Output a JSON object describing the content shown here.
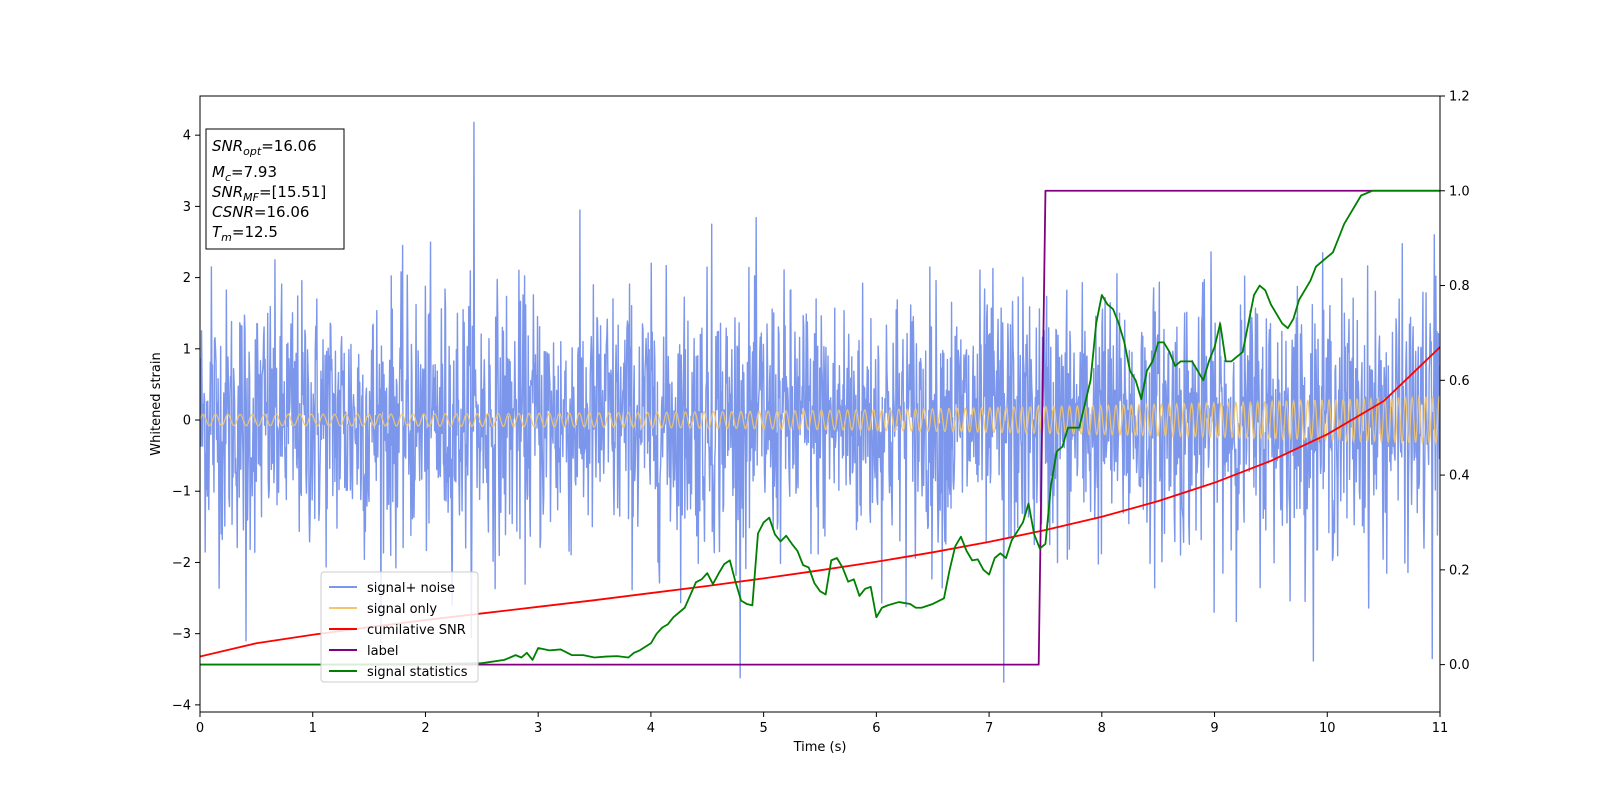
{
  "chart_data": {
    "type": "line",
    "xlabel": "Time (s)",
    "ylabel": "Whitened strain",
    "xlim": [
      0,
      11
    ],
    "ylim": [
      -4.1,
      4.55
    ],
    "y2lim": [
      -0.1,
      1.2
    ],
    "xticks": [
      "0",
      "1",
      "2",
      "3",
      "4",
      "5",
      "6",
      "7",
      "8",
      "9",
      "10",
      "11"
    ],
    "yticks": [
      "−4",
      "−3",
      "−2",
      "−1",
      "0",
      "1",
      "2",
      "3",
      "4"
    ],
    "y2ticks": [
      "0.0",
      "0.2",
      "0.4",
      "0.6",
      "0.8",
      "1.0",
      "1.2"
    ],
    "grid": false,
    "legend_position": "lower-left",
    "info_box": [
      {
        "sym": "SNR",
        "sub": "opt",
        "eq": "=16.06"
      },
      {
        "sym": "M",
        "sub": "c",
        "eq": "=7.93"
      },
      {
        "sym": "SNR",
        "sub": "MF",
        "eq": "=[15.51]"
      },
      {
        "sym": "CSNR",
        "sub": "",
        "eq": "=16.06"
      },
      {
        "sym": "T",
        "sub": "m",
        "eq": "=12.5"
      }
    ],
    "series": [
      {
        "name": "signal+ noise",
        "axis": "left",
        "color": "#7b96ea",
        "noise_std": 0.9,
        "noise_peak_range": [
          -3.7,
          4.2
        ],
        "spikes": [
          [
            2.43,
            4.18
          ],
          [
            7.13,
            -3.68
          ],
          [
            10.93,
            -3.35
          ],
          [
            0.41,
            -3.1
          ],
          [
            0.1,
            2.15
          ],
          [
            4.54,
            2.75
          ],
          [
            10.95,
            2.6
          ]
        ]
      },
      {
        "name": "signal only",
        "axis": "left",
        "color": "#f2c56f",
        "amplitude_start": 0.08,
        "amplitude_end": 0.33,
        "note_x": [
          0,
          11
        ]
      },
      {
        "name": "cumilative SNR",
        "axis": "right",
        "color": "#ff0000",
        "x": [
          0,
          0.5,
          1,
          1.5,
          2,
          2.5,
          3,
          3.5,
          4,
          4.5,
          5,
          5.5,
          6,
          6.5,
          7,
          7.5,
          8,
          8.5,
          9,
          9.5,
          10,
          10.5,
          11
        ],
        "y": [
          0.017,
          0.045,
          0.063,
          0.079,
          0.094,
          0.108,
          0.122,
          0.136,
          0.151,
          0.166,
          0.182,
          0.199,
          0.217,
          0.237,
          0.259,
          0.284,
          0.312,
          0.345,
          0.384,
          0.43,
          0.486,
          0.556,
          0.67
        ]
      },
      {
        "name": "label",
        "axis": "right",
        "color": "#800080",
        "x": [
          0,
          7.44,
          7.5,
          11
        ],
        "y": [
          0.0,
          0.0,
          1.0,
          1.0
        ]
      },
      {
        "name": "signal statistics",
        "axis": "right",
        "color": "#008000",
        "x": [
          0,
          1,
          2,
          2.5,
          2.7,
          2.8,
          2.85,
          2.9,
          2.95,
          3.0,
          3.1,
          3.2,
          3.3,
          3.4,
          3.5,
          3.6,
          3.7,
          3.8,
          3.85,
          3.9,
          4.0,
          4.05,
          4.1,
          4.15,
          4.2,
          4.3,
          4.4,
          4.45,
          4.5,
          4.55,
          4.6,
          4.65,
          4.7,
          4.75,
          4.8,
          4.85,
          4.9,
          4.95,
          5.0,
          5.05,
          5.1,
          5.15,
          5.2,
          5.25,
          5.3,
          5.35,
          5.4,
          5.45,
          5.5,
          5.55,
          5.6,
          5.65,
          5.7,
          5.75,
          5.8,
          5.85,
          5.9,
          5.95,
          6.0,
          6.05,
          6.1,
          6.2,
          6.3,
          6.35,
          6.4,
          6.5,
          6.6,
          6.65,
          6.7,
          6.75,
          6.8,
          6.85,
          6.9,
          6.95,
          7.0,
          7.05,
          7.1,
          7.15,
          7.2,
          7.3,
          7.35,
          7.4,
          7.45,
          7.5,
          7.55,
          7.6,
          7.65,
          7.7,
          7.75,
          7.8,
          7.85,
          7.9,
          7.95,
          8.0,
          8.05,
          8.1,
          8.15,
          8.2,
          8.25,
          8.3,
          8.35,
          8.4,
          8.45,
          8.5,
          8.55,
          8.6,
          8.65,
          8.7,
          8.75,
          8.8,
          8.85,
          8.9,
          8.95,
          9.0,
          9.05,
          9.1,
          9.15,
          9.2,
          9.25,
          9.3,
          9.35,
          9.4,
          9.45,
          9.5,
          9.55,
          9.6,
          9.65,
          9.7,
          9.75,
          9.8,
          9.85,
          9.9,
          9.95,
          10.0,
          10.05,
          10.1,
          10.15,
          10.2,
          10.25,
          10.3,
          10.4,
          10.5,
          10.6,
          10.8,
          11.0
        ],
        "y": [
          0.0,
          0.0,
          0.001,
          0.003,
          0.01,
          0.02,
          0.015,
          0.025,
          0.01,
          0.035,
          0.03,
          0.032,
          0.02,
          0.02,
          0.015,
          0.017,
          0.018,
          0.015,
          0.025,
          0.03,
          0.045,
          0.065,
          0.078,
          0.085,
          0.1,
          0.12,
          0.174,
          0.18,
          0.193,
          0.17,
          0.192,
          0.212,
          0.22,
          0.175,
          0.135,
          0.128,
          0.125,
          0.277,
          0.3,
          0.31,
          0.275,
          0.26,
          0.272,
          0.255,
          0.24,
          0.21,
          0.205,
          0.172,
          0.155,
          0.148,
          0.22,
          0.225,
          0.205,
          0.175,
          0.18,
          0.145,
          0.16,
          0.164,
          0.1,
          0.12,
          0.125,
          0.132,
          0.128,
          0.12,
          0.12,
          0.128,
          0.14,
          0.2,
          0.25,
          0.27,
          0.24,
          0.22,
          0.222,
          0.2,
          0.19,
          0.225,
          0.235,
          0.225,
          0.262,
          0.3,
          0.34,
          0.275,
          0.245,
          0.255,
          0.38,
          0.45,
          0.46,
          0.5,
          0.5,
          0.5,
          0.55,
          0.6,
          0.72,
          0.78,
          0.76,
          0.75,
          0.72,
          0.68,
          0.62,
          0.6,
          0.56,
          0.62,
          0.64,
          0.68,
          0.68,
          0.66,
          0.63,
          0.64,
          0.64,
          0.64,
          0.62,
          0.6,
          0.64,
          0.67,
          0.72,
          0.64,
          0.64,
          0.65,
          0.66,
          0.72,
          0.78,
          0.8,
          0.79,
          0.76,
          0.74,
          0.72,
          0.71,
          0.73,
          0.77,
          0.79,
          0.81,
          0.84,
          0.85,
          0.86,
          0.87,
          0.9,
          0.93,
          0.95,
          0.97,
          0.99,
          1.0,
          1.0,
          1.0,
          1.0,
          1.0
        ]
      }
    ]
  }
}
